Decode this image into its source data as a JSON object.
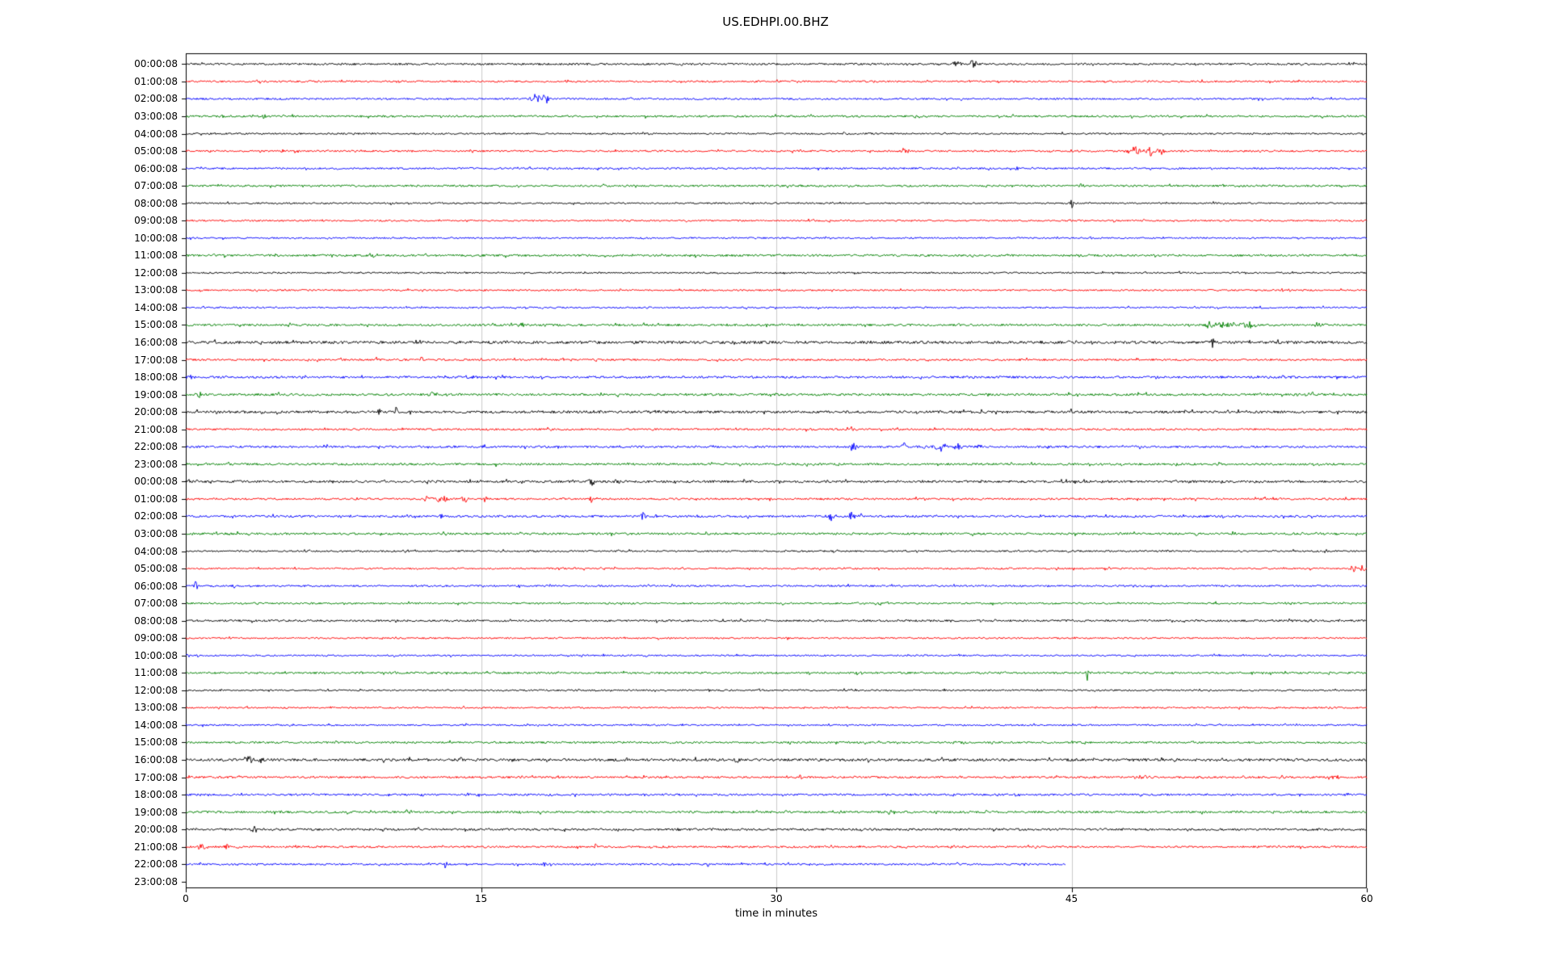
{
  "chart_data": {
    "type": "line",
    "subtype": "helicorder-dayplot",
    "title": "US.EDHPI.00.BHZ",
    "xlabel": "time in minutes",
    "ylabel": "",
    "xlim": [
      0,
      60
    ],
    "xticks": [
      0,
      15,
      30,
      45,
      60
    ],
    "grid": "vertical-only",
    "legend": "none",
    "trace_colors_cycle": [
      "#000000",
      "#ff0000",
      "#0000ff",
      "#008000"
    ],
    "rows": [
      {
        "label": "00:00:08",
        "color": "#000000",
        "noise": 1.2,
        "end_minute": 60,
        "events": [
          {
            "t": 25.2,
            "a": 2.5,
            "d": 0.3
          },
          {
            "t": 39.2,
            "a": 6,
            "d": 0.8
          },
          {
            "t": 40.0,
            "a": 7,
            "d": 0.5
          }
        ]
      },
      {
        "label": "01:00:08",
        "color": "#ff0000",
        "noise": 1.1,
        "end_minute": 60,
        "events": [
          {
            "t": 10.8,
            "a": 2.5,
            "d": 0.2
          }
        ]
      },
      {
        "label": "02:00:08",
        "color": "#0000ff",
        "noise": 1.1,
        "end_minute": 60,
        "events": [
          {
            "t": 17.8,
            "a": 6,
            "d": 1.0
          },
          {
            "t": 18.3,
            "a": 5,
            "d": 0.4
          }
        ]
      },
      {
        "label": "03:00:08",
        "color": "#008000",
        "noise": 1.2,
        "end_minute": 60,
        "events": [
          {
            "t": 4.0,
            "a": 3.5,
            "d": 0.4
          },
          {
            "t": 50.5,
            "a": 2,
            "d": 0.3
          }
        ]
      },
      {
        "label": "04:00:08",
        "color": "#000000",
        "noise": 1.0,
        "end_minute": 60,
        "events": [
          {
            "t": 33.5,
            "a": 2,
            "d": 0.3
          }
        ]
      },
      {
        "label": "05:00:08",
        "color": "#ff0000",
        "noise": 1.1,
        "end_minute": 60,
        "events": [
          {
            "t": 36.5,
            "a": 4.5,
            "d": 0.6
          },
          {
            "t": 48.2,
            "a": 5,
            "d": 1.2
          },
          {
            "t": 49.0,
            "a": 9,
            "d": 0.6
          },
          {
            "t": 49.6,
            "a": 4,
            "d": 0.8
          }
        ]
      },
      {
        "label": "06:00:08",
        "color": "#0000ff",
        "noise": 1.1,
        "end_minute": 60,
        "events": [
          {
            "t": 42.2,
            "a": 3,
            "d": 0.3
          }
        ]
      },
      {
        "label": "07:00:08",
        "color": "#008000",
        "noise": 1.2,
        "end_minute": 60,
        "events": [
          {
            "t": 45.5,
            "a": 2,
            "d": 0.3
          }
        ]
      },
      {
        "label": "08:00:08",
        "color": "#000000",
        "noise": 1.0,
        "end_minute": 60,
        "events": [
          {
            "t": 45.0,
            "a": 5.5,
            "d": 0.4
          }
        ]
      },
      {
        "label": "09:00:08",
        "color": "#ff0000",
        "noise": 1.0,
        "end_minute": 60,
        "events": []
      },
      {
        "label": "10:00:08",
        "color": "#0000ff",
        "noise": 1.0,
        "end_minute": 60,
        "events": []
      },
      {
        "label": "11:00:08",
        "color": "#008000",
        "noise": 1.3,
        "end_minute": 60,
        "events": [
          {
            "t": 9.5,
            "a": 2,
            "d": 0.8
          }
        ]
      },
      {
        "label": "12:00:08",
        "color": "#000000",
        "noise": 1.0,
        "end_minute": 60,
        "events": [
          {
            "t": 30.4,
            "a": 3,
            "d": 0.2
          }
        ]
      },
      {
        "label": "13:00:08",
        "color": "#ff0000",
        "noise": 1.0,
        "end_minute": 60,
        "events": []
      },
      {
        "label": "14:00:08",
        "color": "#0000ff",
        "noise": 1.0,
        "end_minute": 60,
        "events": [
          {
            "t": 52.0,
            "a": 2,
            "d": 0.2
          }
        ]
      },
      {
        "label": "15:00:08",
        "color": "#008000",
        "noise": 1.3,
        "end_minute": 60,
        "events": [
          {
            "t": 52.0,
            "a": 7,
            "d": 0.5
          },
          {
            "t": 52.8,
            "a": 5,
            "d": 1.5
          },
          {
            "t": 54.0,
            "a": 4,
            "d": 1.0
          },
          {
            "t": 57.5,
            "a": 2.5,
            "d": 1.0
          }
        ]
      },
      {
        "label": "16:00:08",
        "color": "#000000",
        "noise": 1.7,
        "end_minute": 60,
        "events": [
          {
            "t": 34.0,
            "a": 2.5,
            "d": 0.4
          },
          {
            "t": 52.2,
            "a": 7,
            "d": 0.3
          }
        ]
      },
      {
        "label": "17:00:08",
        "color": "#ff0000",
        "noise": 1.2,
        "end_minute": 60,
        "events": [
          {
            "t": 9.7,
            "a": 3.5,
            "d": 0.3
          },
          {
            "t": 12.0,
            "a": 4,
            "d": 0.3
          }
        ]
      },
      {
        "label": "18:00:08",
        "color": "#0000ff",
        "noise": 1.4,
        "end_minute": 60,
        "events": [
          {
            "t": 0.3,
            "a": 3,
            "d": 0.3
          },
          {
            "t": 49.3,
            "a": 6,
            "d": 0.2
          }
        ]
      },
      {
        "label": "19:00:08",
        "color": "#008000",
        "noise": 1.4,
        "end_minute": 60,
        "events": [
          {
            "t": 0.7,
            "a": 4.5,
            "d": 0.4
          },
          {
            "t": 6.5,
            "a": 2.5,
            "d": 0.3
          },
          {
            "t": 12.5,
            "a": 4,
            "d": 0.4
          },
          {
            "t": 57.2,
            "a": 3.5,
            "d": 0.5
          }
        ]
      },
      {
        "label": "20:00:08",
        "color": "#000000",
        "noise": 1.5,
        "end_minute": 60,
        "events": [
          {
            "t": 9.8,
            "a": 4,
            "d": 0.3
          },
          {
            "t": 10.7,
            "a": 5,
            "d": 0.2
          },
          {
            "t": 45.0,
            "a": 3.5,
            "d": 0.3
          }
        ]
      },
      {
        "label": "21:00:08",
        "color": "#ff0000",
        "noise": 1.2,
        "end_minute": 60,
        "events": [
          {
            "t": 33.8,
            "a": 5,
            "d": 0.3
          },
          {
            "t": 46.3,
            "a": 2.5,
            "d": 0.2
          }
        ]
      },
      {
        "label": "22:00:08",
        "color": "#0000ff",
        "noise": 1.3,
        "end_minute": 60,
        "events": [
          {
            "t": 33.9,
            "a": 5.5,
            "d": 0.5
          },
          {
            "t": 36.5,
            "a": 4.5,
            "d": 0.4
          },
          {
            "t": 38.3,
            "a": 5,
            "d": 0.8
          },
          {
            "t": 39.2,
            "a": 4.5,
            "d": 0.6
          },
          {
            "t": 40.3,
            "a": 3.5,
            "d": 0.5
          }
        ]
      },
      {
        "label": "23:00:08",
        "color": "#008000",
        "noise": 1.3,
        "end_minute": 60,
        "events": [
          {
            "t": 15.8,
            "a": 4,
            "d": 0.2
          },
          {
            "t": 24.0,
            "a": 2.5,
            "d": 0.3
          },
          {
            "t": 47.5,
            "a": 2,
            "d": 0.2
          }
        ]
      },
      {
        "label": "00:00:08",
        "color": "#000000",
        "noise": 1.4,
        "end_minute": 60,
        "events": [
          {
            "t": 0.6,
            "a": 4,
            "d": 0.5
          },
          {
            "t": 20.6,
            "a": 7.5,
            "d": 0.4
          },
          {
            "t": 21.9,
            "a": 4.5,
            "d": 0.4
          },
          {
            "t": 35.8,
            "a": 2.5,
            "d": 0.2
          },
          {
            "t": 39.5,
            "a": 2.5,
            "d": 0.2
          }
        ]
      },
      {
        "label": "01:00:08",
        "color": "#ff0000",
        "noise": 1.2,
        "end_minute": 60,
        "events": [
          {
            "t": 12.3,
            "a": 5,
            "d": 0.6
          },
          {
            "t": 13.0,
            "a": 6,
            "d": 0.8
          },
          {
            "t": 14.2,
            "a": 4.5,
            "d": 0.8
          },
          {
            "t": 15.3,
            "a": 3.5,
            "d": 0.4
          },
          {
            "t": 20.6,
            "a": 5.5,
            "d": 0.3
          }
        ]
      },
      {
        "label": "02:00:08",
        "color": "#0000ff",
        "noise": 1.3,
        "end_minute": 60,
        "events": [
          {
            "t": 13.0,
            "a": 4.5,
            "d": 0.3
          },
          {
            "t": 23.2,
            "a": 4.5,
            "d": 0.5
          },
          {
            "t": 23.9,
            "a": 3.5,
            "d": 0.4
          },
          {
            "t": 32.8,
            "a": 5.5,
            "d": 0.6
          },
          {
            "t": 33.8,
            "a": 6,
            "d": 0.4
          },
          {
            "t": 34.3,
            "a": 3.5,
            "d": 0.4
          }
        ]
      },
      {
        "label": "03:00:08",
        "color": "#008000",
        "noise": 1.3,
        "end_minute": 60,
        "events": [
          {
            "t": 51.3,
            "a": 4,
            "d": 0.3
          }
        ]
      },
      {
        "label": "04:00:08",
        "color": "#000000",
        "noise": 1.0,
        "end_minute": 60,
        "events": [
          {
            "t": 11.2,
            "a": 3,
            "d": 0.4
          }
        ]
      },
      {
        "label": "05:00:08",
        "color": "#ff0000",
        "noise": 1.0,
        "end_minute": 60,
        "events": [
          {
            "t": 59.3,
            "a": 5,
            "d": 0.5
          },
          {
            "t": 59.8,
            "a": 6,
            "d": 0.3
          }
        ]
      },
      {
        "label": "06:00:08",
        "color": "#0000ff",
        "noise": 1.1,
        "end_minute": 60,
        "events": [
          {
            "t": 0.5,
            "a": 5,
            "d": 0.4
          },
          {
            "t": 2.4,
            "a": 4.5,
            "d": 0.4
          }
        ]
      },
      {
        "label": "07:00:08",
        "color": "#008000",
        "noise": 1.1,
        "end_minute": 60,
        "events": []
      },
      {
        "label": "08:00:08",
        "color": "#000000",
        "noise": 1.2,
        "end_minute": 60,
        "events": []
      },
      {
        "label": "09:00:08",
        "color": "#ff0000",
        "noise": 1.0,
        "end_minute": 60,
        "events": []
      },
      {
        "label": "10:00:08",
        "color": "#0000ff",
        "noise": 1.0,
        "end_minute": 60,
        "events": []
      },
      {
        "label": "11:00:08",
        "color": "#008000",
        "noise": 1.2,
        "end_minute": 60,
        "events": [
          {
            "t": 45.8,
            "a": 10,
            "d": 0.15
          }
        ]
      },
      {
        "label": "12:00:08",
        "color": "#000000",
        "noise": 1.0,
        "end_minute": 60,
        "events": []
      },
      {
        "label": "13:00:08",
        "color": "#ff0000",
        "noise": 1.0,
        "end_minute": 60,
        "events": []
      },
      {
        "label": "14:00:08",
        "color": "#0000ff",
        "noise": 1.0,
        "end_minute": 60,
        "events": []
      },
      {
        "label": "15:00:08",
        "color": "#008000",
        "noise": 1.2,
        "end_minute": 60,
        "events": [
          {
            "t": 34.5,
            "a": 2.5,
            "d": 0.2
          }
        ]
      },
      {
        "label": "16:00:08",
        "color": "#000000",
        "noise": 1.6,
        "end_minute": 60,
        "events": [
          {
            "t": 3.2,
            "a": 6,
            "d": 0.7
          },
          {
            "t": 3.8,
            "a": 5,
            "d": 0.4
          },
          {
            "t": 14.0,
            "a": 4,
            "d": 0.2
          },
          {
            "t": 28.0,
            "a": 3.5,
            "d": 0.3
          },
          {
            "t": 35.2,
            "a": 3,
            "d": 0.3
          },
          {
            "t": 52.6,
            "a": 4,
            "d": 0.2
          }
        ]
      },
      {
        "label": "17:00:08",
        "color": "#ff0000",
        "noise": 1.2,
        "end_minute": 60,
        "events": [
          {
            "t": 24.3,
            "a": 3.5,
            "d": 0.3
          },
          {
            "t": 31.2,
            "a": 3.5,
            "d": 0.3
          },
          {
            "t": 48.5,
            "a": 2.5,
            "d": 1.5
          },
          {
            "t": 58.5,
            "a": 2.5,
            "d": 1.0
          }
        ]
      },
      {
        "label": "18:00:08",
        "color": "#0000ff",
        "noise": 1.2,
        "end_minute": 60,
        "events": [
          {
            "t": 59.0,
            "a": 3.5,
            "d": 0.3
          }
        ]
      },
      {
        "label": "19:00:08",
        "color": "#008000",
        "noise": 1.3,
        "end_minute": 60,
        "events": [
          {
            "t": 11.3,
            "a": 3,
            "d": 0.5
          },
          {
            "t": 35.8,
            "a": 3,
            "d": 0.4
          },
          {
            "t": 44.3,
            "a": 2.5,
            "d": 0.2
          }
        ]
      },
      {
        "label": "20:00:08",
        "color": "#000000",
        "noise": 1.3,
        "end_minute": 60,
        "events": [
          {
            "t": 3.5,
            "a": 4,
            "d": 0.4
          },
          {
            "t": 19.2,
            "a": 3,
            "d": 0.3
          },
          {
            "t": 25.0,
            "a": 3.5,
            "d": 0.3
          }
        ]
      },
      {
        "label": "21:00:08",
        "color": "#ff0000",
        "noise": 1.2,
        "end_minute": 60,
        "events": [
          {
            "t": 0.8,
            "a": 4,
            "d": 0.6
          },
          {
            "t": 2.0,
            "a": 3.5,
            "d": 0.5
          },
          {
            "t": 20.8,
            "a": 4,
            "d": 0.3
          }
        ]
      },
      {
        "label": "22:00:08",
        "color": "#0000ff",
        "noise": 1.1,
        "end_minute": 44.7,
        "events": [
          {
            "t": 6.8,
            "a": 3,
            "d": 0.2
          },
          {
            "t": 13.2,
            "a": 4,
            "d": 0.3
          },
          {
            "t": 16.8,
            "a": 3,
            "d": 0.25
          },
          {
            "t": 18.2,
            "a": 3.5,
            "d": 0.3
          },
          {
            "t": 26.5,
            "a": 3,
            "d": 0.25
          }
        ]
      },
      {
        "label": "23:00:08",
        "color": null,
        "noise": 0,
        "end_minute": 0,
        "events": []
      }
    ]
  }
}
